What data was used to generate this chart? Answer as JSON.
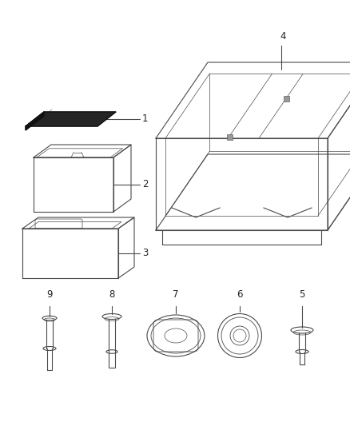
{
  "background_color": "#ffffff",
  "line_color": "#4a4a4a",
  "label_color": "#222222",
  "fontsize": 8.5,
  "fig_w": 4.38,
  "fig_h": 5.33,
  "dpi": 100
}
